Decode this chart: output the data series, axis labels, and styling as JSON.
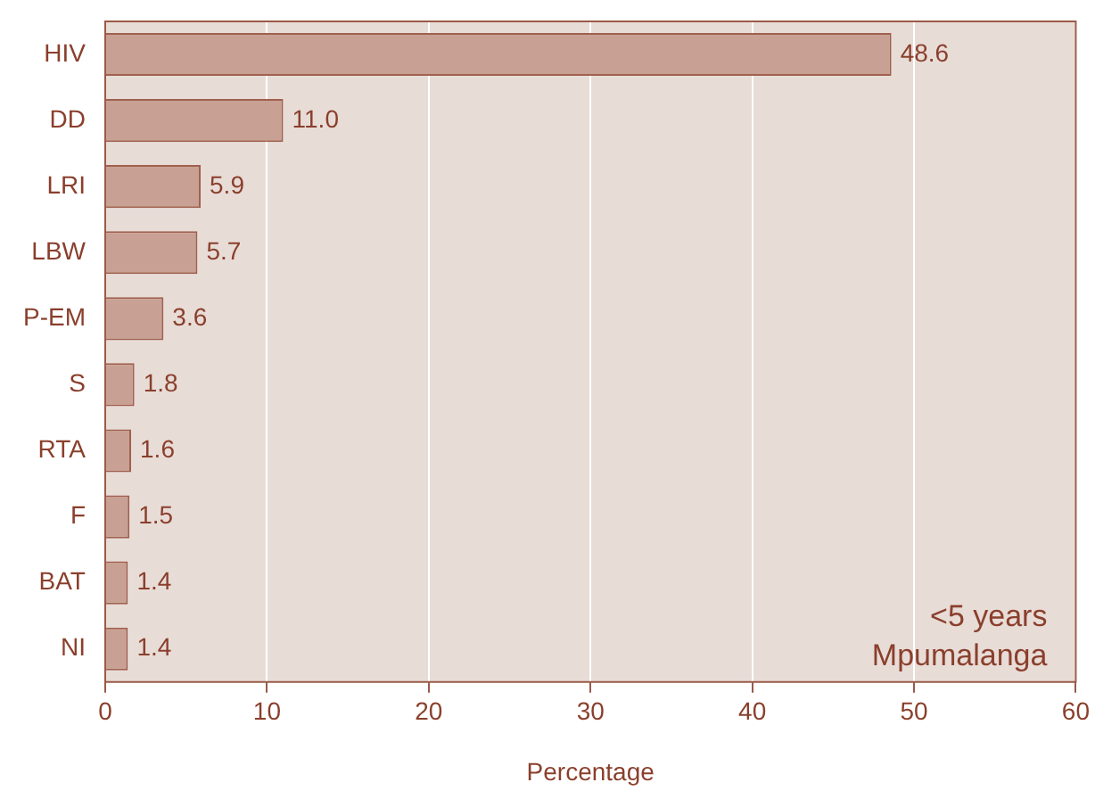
{
  "chart_data": {
    "type": "bar",
    "orientation": "horizontal",
    "xlabel": "Percentage",
    "categories": [
      "HIV",
      "DD",
      "LRI",
      "LBW",
      "P-EM",
      "S",
      "RTA",
      "F",
      "BAT",
      "NI"
    ],
    "values": [
      48.6,
      11.0,
      5.9,
      5.7,
      3.6,
      1.8,
      1.6,
      1.5,
      1.4,
      1.4
    ],
    "value_labels": [
      "48.6",
      "11.0",
      "5.9",
      "5.7",
      "3.6",
      "1.8",
      "1.6",
      "1.5",
      "1.4",
      "1.4"
    ],
    "color": "#c9a194",
    "xlim": [
      0,
      60
    ],
    "xticks": [
      0,
      10,
      20,
      30,
      40,
      50,
      60
    ],
    "grid": "x",
    "legend": false,
    "annotations": [
      "<5 years",
      "Mpumalanga"
    ]
  }
}
